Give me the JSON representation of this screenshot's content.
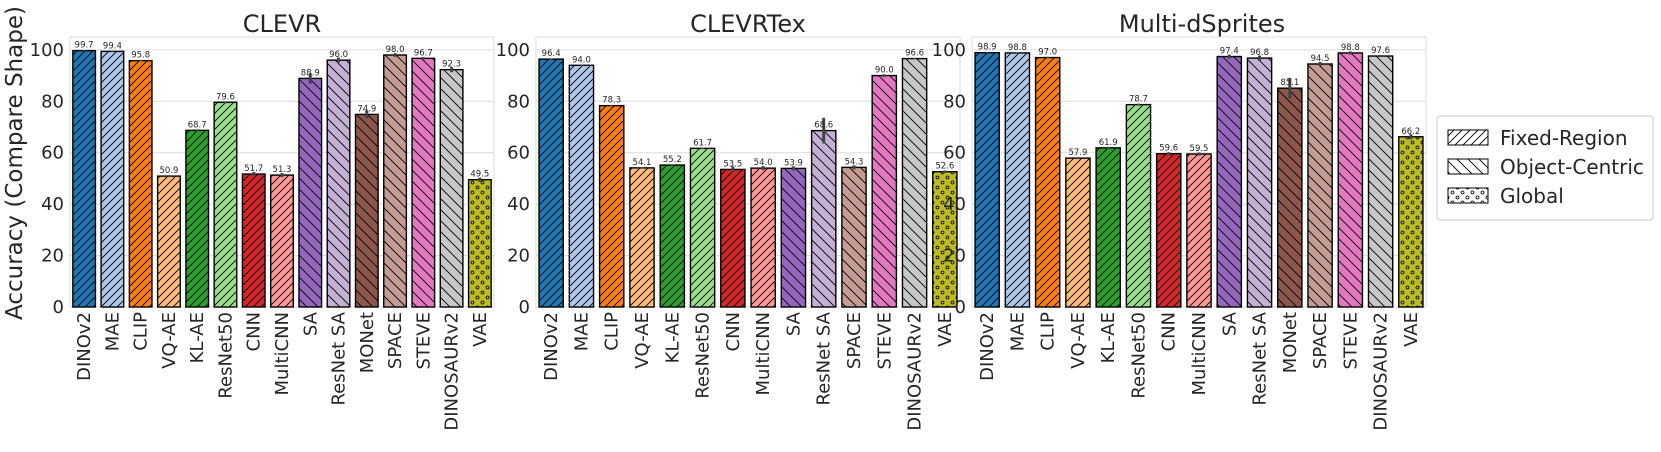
{
  "chart_data": [
    {
      "type": "bar",
      "title": "CLEVR",
      "ylabel": "Accuracy (Compare Shape)",
      "ylim": [
        0,
        105
      ],
      "yticks": [
        0,
        20,
        40,
        60,
        80,
        100
      ],
      "grid": true,
      "categories": [
        "DINOv2",
        "MAE",
        "CLIP",
        "VQ-AE",
        "KL-AE",
        "ResNet50",
        "CNN",
        "MultiCNN",
        "SA",
        "ResNet SA",
        "MONet",
        "SPACE",
        "STEVE",
        "DINOSAURv2",
        "VAE"
      ],
      "values": [
        99.7,
        99.4,
        95.8,
        50.9,
        68.7,
        79.6,
        51.7,
        51.3,
        88.9,
        96.0,
        74.9,
        98.0,
        96.7,
        92.3,
        49.5
      ],
      "labels": [
        "99.7",
        "99.4",
        "95.8",
        "50.9",
        "68.7",
        "79.6",
        "51.7",
        "51.3",
        "88.9",
        "96.0",
        "74.9",
        "98.0",
        "96.7",
        "92.3",
        "49.5"
      ],
      "errors": [
        0.2,
        0.2,
        0.3,
        0.4,
        0.4,
        0.4,
        0.8,
        0.8,
        2.0,
        1.0,
        1.5,
        0.7,
        0.5,
        1.0,
        0.8
      ]
    },
    {
      "type": "bar",
      "title": "CLEVRTex",
      "ylim": [
        0,
        105
      ],
      "yticks": [
        0,
        20,
        40,
        60,
        80,
        100
      ],
      "grid": true,
      "categories": [
        "DINOv2",
        "MAE",
        "CLIP",
        "VQ-AE",
        "KL-AE",
        "ResNet50",
        "CNN",
        "MultiCNN",
        "SA",
        "ResNet SA",
        "SPACE",
        "STEVE",
        "DINOSAURv2",
        "VAE"
      ],
      "values": [
        96.4,
        94.0,
        78.3,
        54.1,
        55.2,
        61.7,
        53.5,
        54.0,
        53.9,
        68.6,
        54.3,
        90.0,
        96.6,
        52.6
      ],
      "labels": [
        "96.4",
        "94.0",
        "78.3",
        "54.1",
        "55.2",
        "61.7",
        "53.5",
        "54.0",
        "53.9",
        "68.6",
        "54.3",
        "90.0",
        "96.6",
        "52.6"
      ],
      "errors": [
        0.2,
        0.2,
        0.3,
        0.3,
        0.3,
        0.3,
        1.2,
        0.8,
        0.8,
        5.0,
        0.8,
        0.5,
        0.3,
        0.5
      ]
    },
    {
      "type": "bar",
      "title": "Multi-dSprites",
      "ylim": [
        0,
        105
      ],
      "yticks": [
        0,
        20,
        40,
        60,
        80,
        100
      ],
      "grid": true,
      "categories": [
        "DINOv2",
        "MAE",
        "CLIP",
        "VQ-AE",
        "KL-AE",
        "ResNet50",
        "CNN",
        "MultiCNN",
        "SA",
        "ResNet SA",
        "MONet",
        "SPACE",
        "STEVE",
        "DINOSAURv2",
        "VAE"
      ],
      "values": [
        98.9,
        98.8,
        97.0,
        57.9,
        61.9,
        78.7,
        59.6,
        59.5,
        97.4,
        96.8,
        85.1,
        94.5,
        98.8,
        97.6,
        66.2
      ],
      "labels": [
        "98.9",
        "98.8",
        "97.0",
        "57.9",
        "61.9",
        "78.7",
        "59.6",
        "59.5",
        "97.4",
        "96.8",
        "85.1",
        "94.5",
        "98.8",
        "97.6",
        "66.2"
      ],
      "errors": [
        0.2,
        0.2,
        0.3,
        0.4,
        0.4,
        0.4,
        0.6,
        0.6,
        0.8,
        1.0,
        4.0,
        0.8,
        0.6,
        0.4,
        1.0
      ]
    }
  ],
  "legend": {
    "placement": "right",
    "entries": [
      {
        "label": "Fixed-Region",
        "hatch": "fixed"
      },
      {
        "label": "Object-Centric",
        "hatch": "object"
      },
      {
        "label": "Global",
        "hatch": "global"
      }
    ]
  },
  "method_styles": {
    "DINOv2": {
      "color": "#1f77b4",
      "hatch": "fixed"
    },
    "MAE": {
      "color": "#aec7e8",
      "hatch": "fixed"
    },
    "CLIP": {
      "color": "#ff7f0e",
      "hatch": "fixed"
    },
    "VQ-AE": {
      "color": "#ffbb78",
      "hatch": "fixed"
    },
    "KL-AE": {
      "color": "#2ca02c",
      "hatch": "fixed"
    },
    "ResNet50": {
      "color": "#98df8a",
      "hatch": "fixed"
    },
    "CNN": {
      "color": "#d62728",
      "hatch": "fixed"
    },
    "MultiCNN": {
      "color": "#ff9896",
      "hatch": "fixed"
    },
    "SA": {
      "color": "#9467bd",
      "hatch": "object"
    },
    "ResNet SA": {
      "color": "#c5b0d5",
      "hatch": "object"
    },
    "MONet": {
      "color": "#8c564b",
      "hatch": "object"
    },
    "SPACE": {
      "color": "#c49c94",
      "hatch": "object"
    },
    "STEVE": {
      "color": "#e377c2",
      "hatch": "object"
    },
    "DINOSAURv2": {
      "color": "#c7c7c7",
      "hatch": "object"
    },
    "VAE": {
      "color": "#bcbd22",
      "hatch": "global"
    }
  }
}
